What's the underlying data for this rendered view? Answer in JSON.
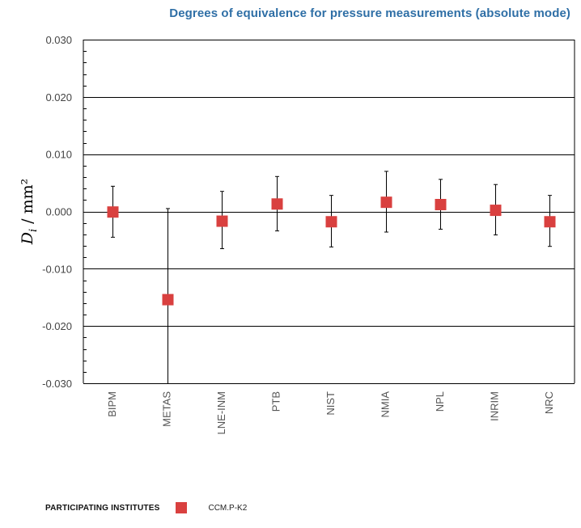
{
  "chart_data": {
    "type": "scatter",
    "title": "Degrees of equivalence for pressure measurements (absolute mode)",
    "ylabel_symbol": "D",
    "ylabel_subscript": "i",
    "ylabel_unit": " / mm²",
    "ylim": [
      -0.03,
      0.03
    ],
    "yticks": [
      0.03,
      0.02,
      0.01,
      0.0,
      -0.01,
      -0.02,
      -0.03
    ],
    "ytick_labels": [
      "0.030",
      "0.020",
      "0.010",
      "0.000",
      "-0.010",
      "-0.020",
      "-0.030"
    ],
    "grid": true,
    "legend_position": "bottom-left",
    "legend_heading": "PARTICIPATING INSTITUTES",
    "categories": [
      "BIPM",
      "METAS",
      "LNE-INM",
      "PTB",
      "NIST",
      "NMIA",
      "NPL",
      "INRIM",
      "NRC"
    ],
    "series": [
      {
        "name": "CCM.P-K2",
        "color": "#d9403f",
        "values": [
          -0.0001,
          -0.0154,
          -0.0017,
          0.0013,
          -0.0018,
          0.0016,
          0.0012,
          0.0002,
          -0.0018
        ],
        "upper": [
          0.0044,
          0.0005,
          0.0035,
          0.0061,
          0.0028,
          0.007,
          0.0056,
          0.0047,
          0.0028
        ],
        "lower": [
          -0.0045,
          -0.0305,
          -0.0065,
          -0.0034,
          -0.0062,
          -0.0036,
          -0.0031,
          -0.0041,
          -0.0061
        ]
      }
    ]
  }
}
